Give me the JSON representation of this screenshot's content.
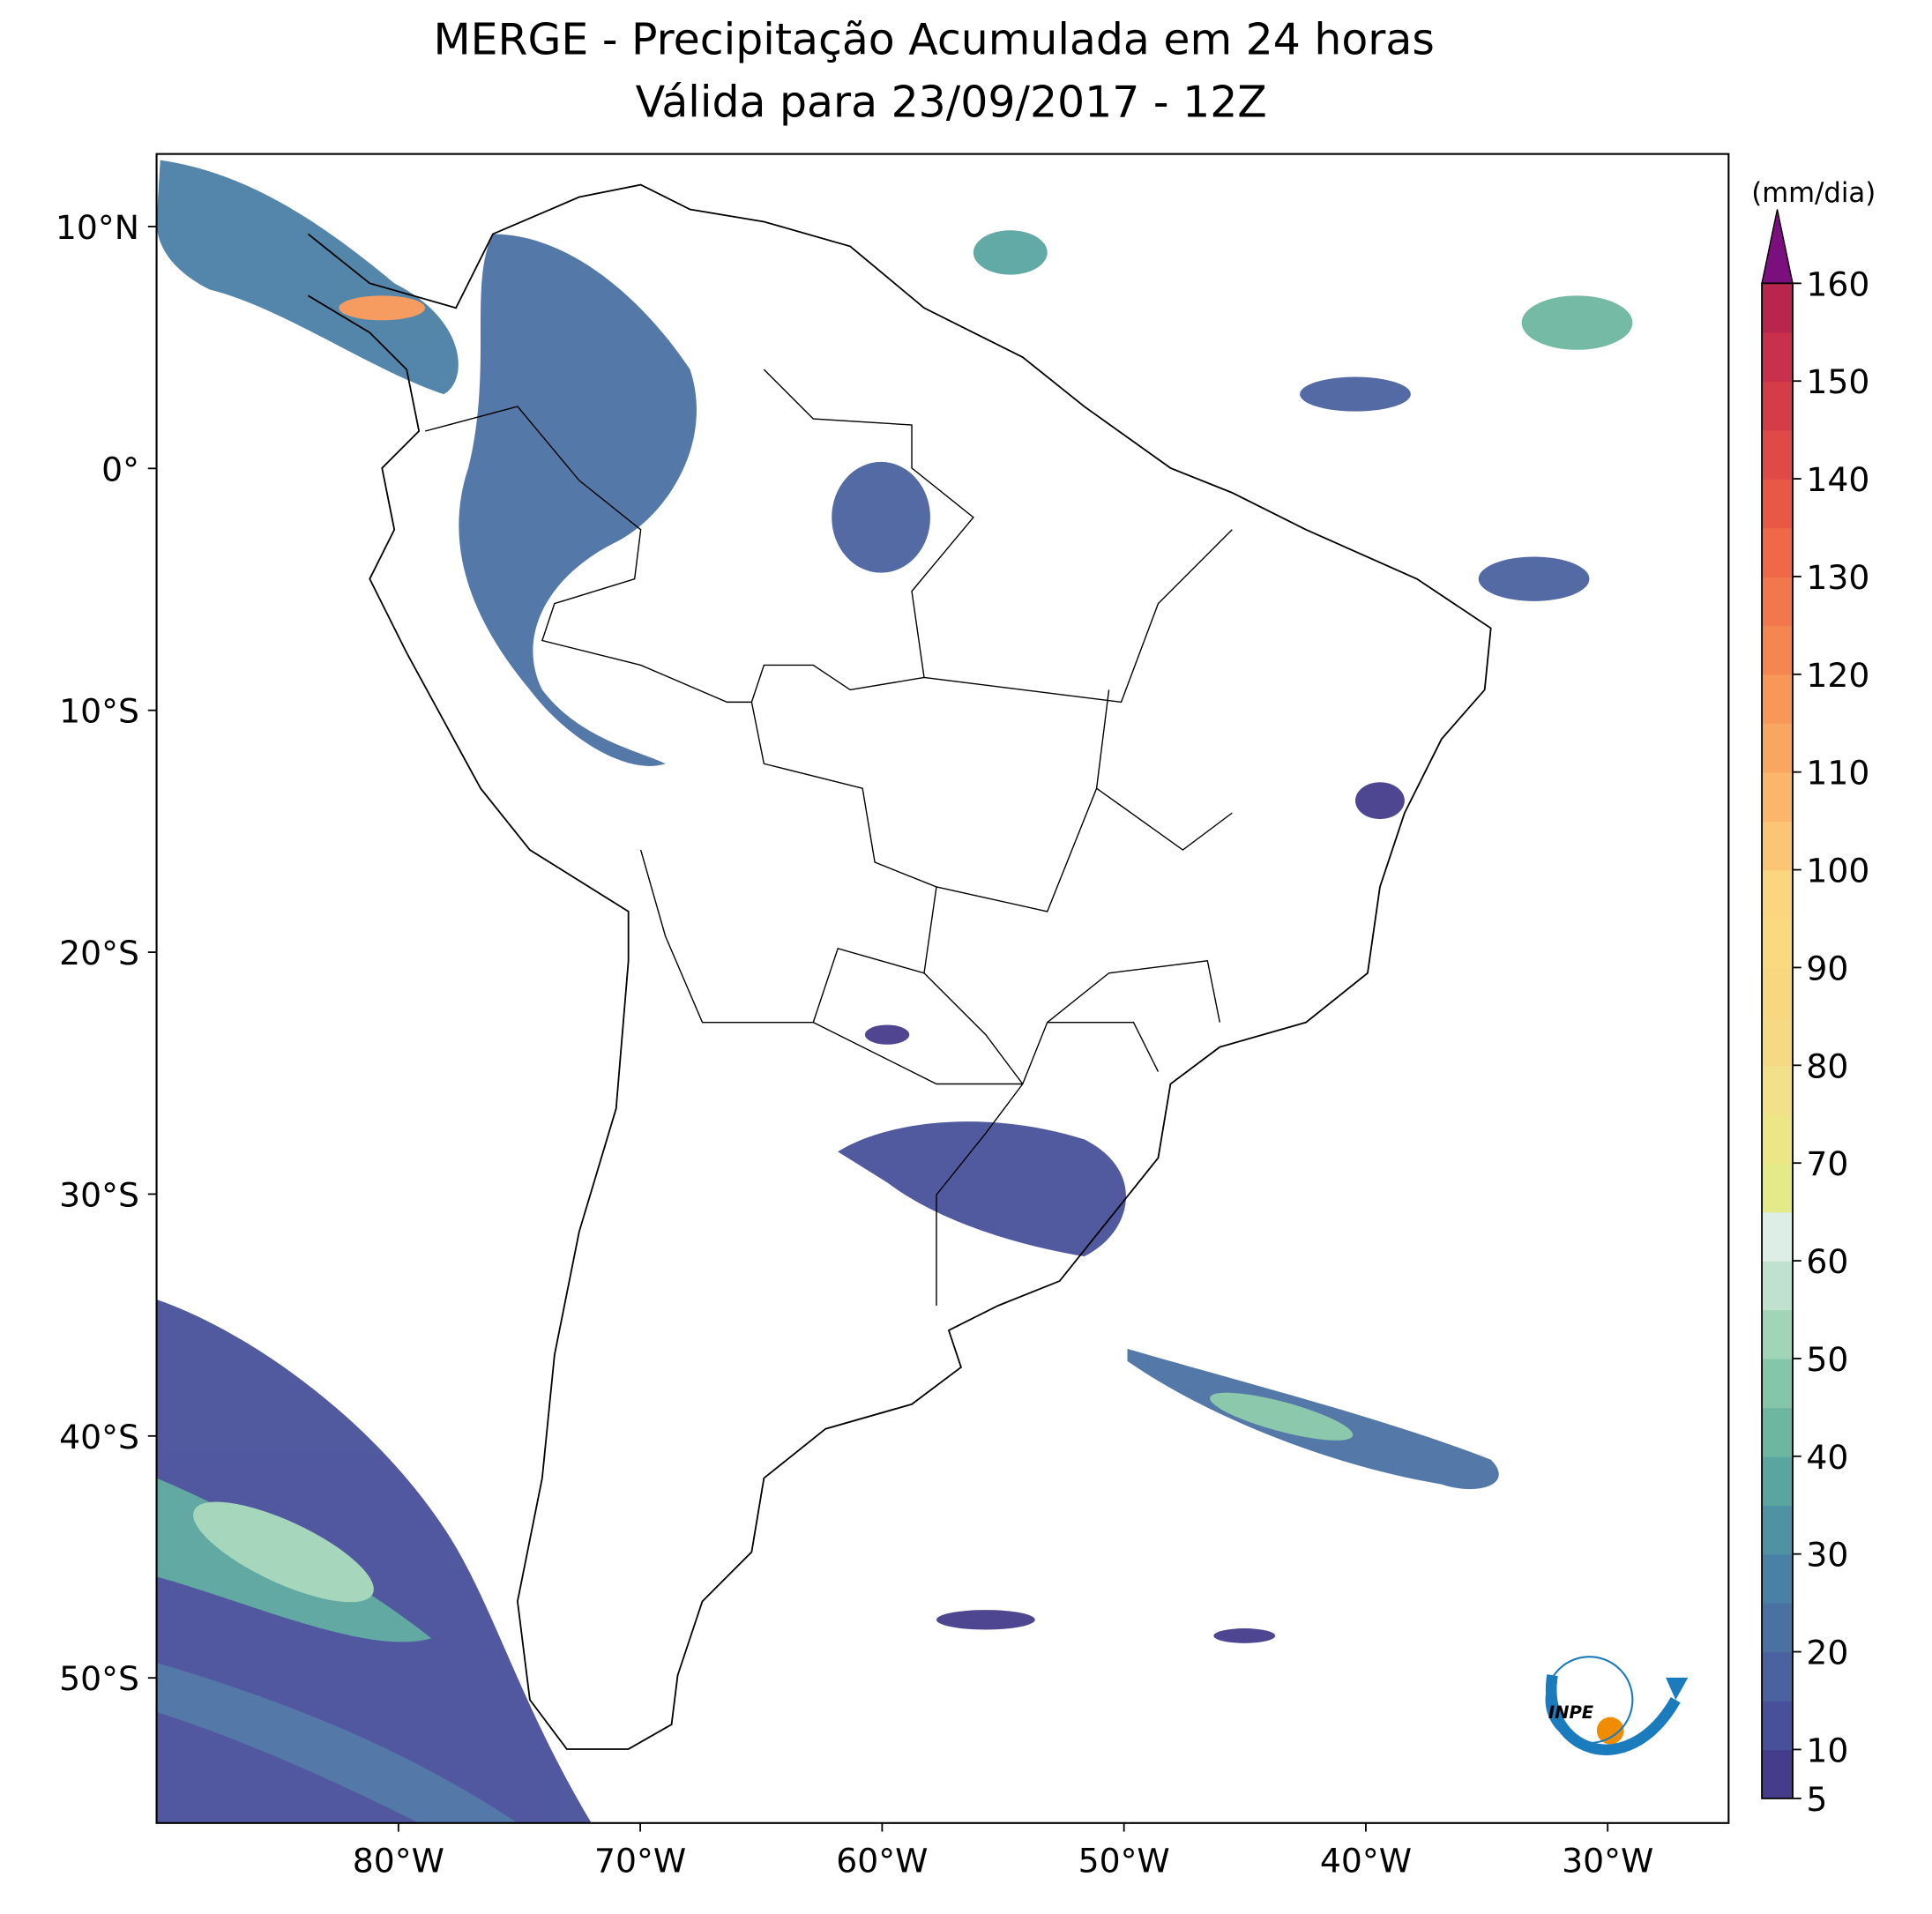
{
  "title": "MERGE - Precipitação Acumulada em 24 horas",
  "subtitle": "Válida para 23/09/2017 - 12Z",
  "map": {
    "xlim": [
      -90,
      -25
    ],
    "ylim": [
      -56,
      13
    ],
    "xticks": [
      {
        "value": -80,
        "label": "80°W"
      },
      {
        "value": -70,
        "label": "70°W"
      },
      {
        "value": -60,
        "label": "60°W"
      },
      {
        "value": -50,
        "label": "50°W"
      },
      {
        "value": -40,
        "label": "40°W"
      },
      {
        "value": -30,
        "label": "30°W"
      }
    ],
    "yticks": [
      {
        "value": 10,
        "label": "10°N"
      },
      {
        "value": 0,
        "label": "0°"
      },
      {
        "value": -10,
        "label": "10°S"
      },
      {
        "value": -20,
        "label": "20°S"
      },
      {
        "value": -30,
        "label": "30°S"
      },
      {
        "value": -40,
        "label": "40°S"
      },
      {
        "value": -50,
        "label": "50°S"
      }
    ]
  },
  "colorbar": {
    "label": "(mm/dia)",
    "lim": [
      5,
      160
    ],
    "ticks": [
      5,
      10,
      20,
      30,
      40,
      50,
      60,
      70,
      80,
      90,
      100,
      110,
      120,
      130,
      140,
      150,
      160
    ],
    "colors": [
      "#463c8c",
      "#48509a",
      "#4a62a0",
      "#4b71a3",
      "#4b80a6",
      "#4f92a4",
      "#5aa5a0",
      "#6db69f",
      "#86c6a8",
      "#a2d4b8",
      "#c0e1cd",
      "#dceee6",
      "#e4ea88",
      "#ede687",
      "#f2e08a",
      "#f5da83",
      "#f8d77f",
      "#fad97f",
      "#fbd67f",
      "#fcc575",
      "#fbb66b",
      "#f9a760",
      "#f79758",
      "#f58652",
      "#f3774c",
      "#ef6848",
      "#e85845",
      "#df4946",
      "#d43c48",
      "#c8304b",
      "#b8254d"
    ],
    "extend_color": "#7b0f7e"
  },
  "logo_text": "INPE"
}
